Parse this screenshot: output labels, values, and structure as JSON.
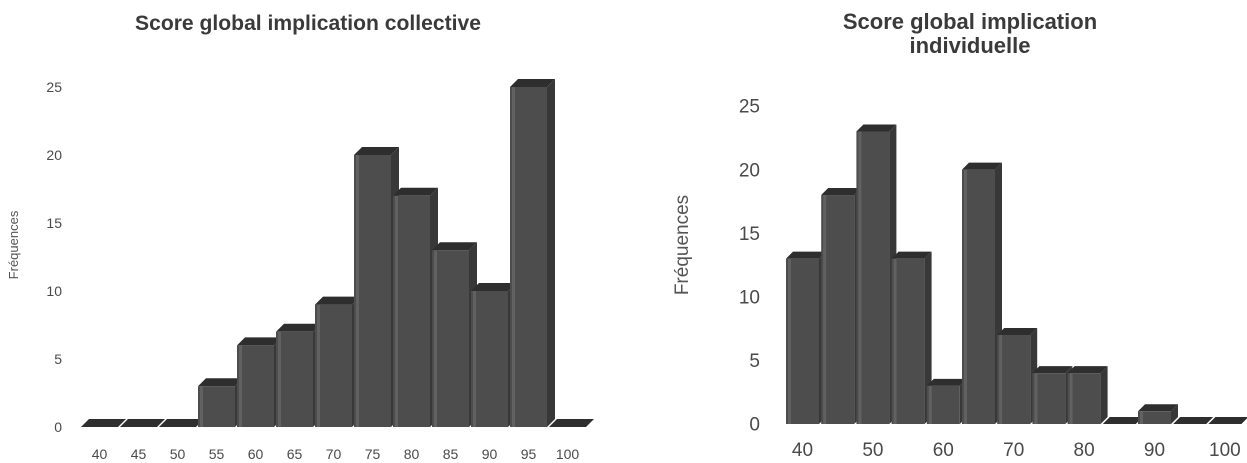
{
  "colors": {
    "bar_front": "#4d4d4d",
    "bar_top": "#2e2e2e",
    "bar_side": "#383838",
    "bar_highlight": "#707070",
    "text": "#3a3a3a"
  },
  "chart_data": [
    {
      "type": "bar",
      "title": "Score global implication collective",
      "ylabel": "Fréquences",
      "xlabel": "",
      "ylim": [
        0,
        25
      ],
      "yticks": [
        0,
        5,
        10,
        15,
        20,
        25
      ],
      "categories": [
        "40",
        "45",
        "50",
        "55",
        "60",
        "65",
        "70",
        "75",
        "80",
        "85",
        "90",
        "95",
        "100"
      ],
      "values": [
        0,
        0,
        0,
        3,
        6,
        7,
        9,
        20,
        17,
        13,
        10,
        25,
        0
      ],
      "grid": false,
      "legend": "none"
    },
    {
      "type": "bar",
      "title": "Score global implication individuelle",
      "title_lines": [
        "Score global implication",
        "individuelle"
      ],
      "ylabel": "Fréquences",
      "xlabel": "",
      "ylim": [
        0,
        25
      ],
      "yticks": [
        0,
        5,
        10,
        15,
        20,
        25
      ],
      "x_tick_labels": [
        "40",
        "50",
        "60",
        "70",
        "80",
        "90",
        "100"
      ],
      "categories": [
        "40",
        "45",
        "50",
        "55",
        "60",
        "65",
        "70",
        "75",
        "80",
        "85",
        "90",
        "95",
        "100"
      ],
      "values": [
        13,
        18,
        23,
        13,
        3,
        20,
        7,
        4,
        4,
        0,
        1,
        0,
        0
      ],
      "grid": false,
      "legend": "none"
    }
  ]
}
